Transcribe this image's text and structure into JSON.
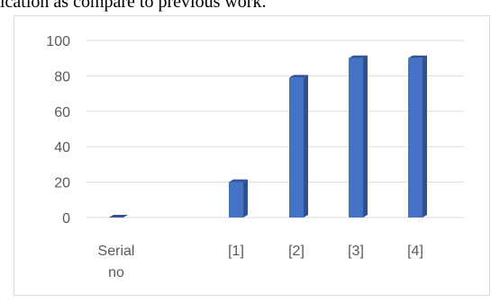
{
  "page": {
    "top_text": "ication as compare to previous work."
  },
  "chart_data": {
    "type": "bar",
    "title": "",
    "xlabel": "",
    "ylabel": "",
    "categories": [
      "Serial no",
      "[1]",
      "[2]",
      "[3]",
      "[4]"
    ],
    "category_lines": [
      [
        "Serial",
        "no"
      ],
      [
        "[1]"
      ],
      [
        "[2]"
      ],
      [
        "[3]"
      ],
      [
        "[4]"
      ]
    ],
    "values": [
      0,
      20,
      79,
      90,
      90
    ],
    "ylim": [
      0,
      100
    ],
    "yticks": [
      "0",
      "20",
      "40",
      "60",
      "80",
      "100"
    ],
    "grid": true,
    "legend": "none",
    "colors": {
      "bar_front": "#4472c4",
      "bar_side": "#2f528f",
      "bar_top": "#305496",
      "grid": "#d9d9d9",
      "tick_text": "#595959"
    }
  }
}
